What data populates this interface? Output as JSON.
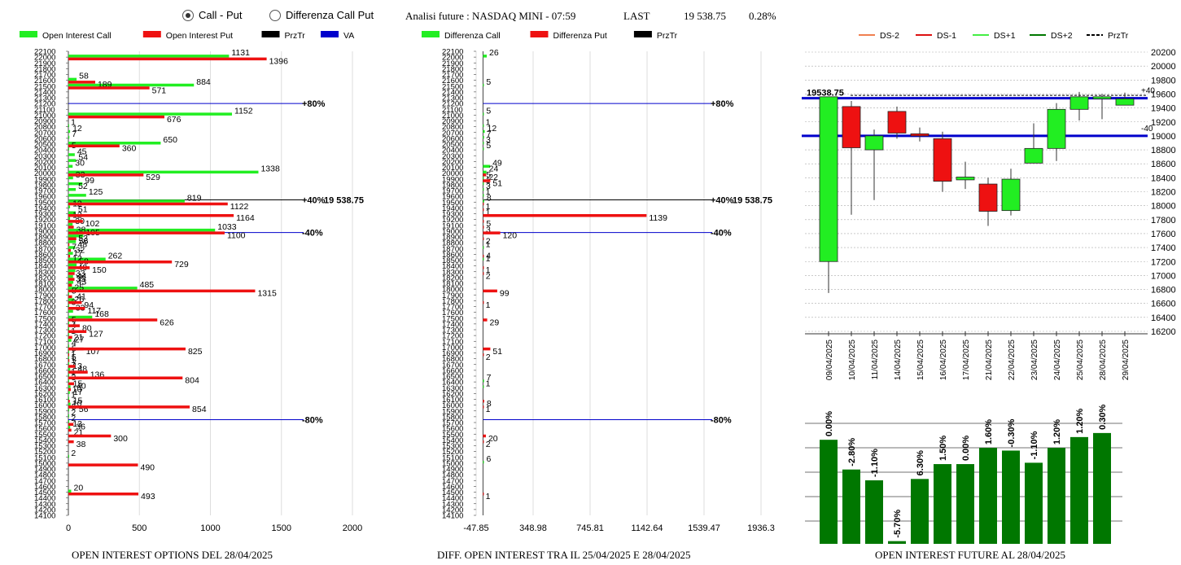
{
  "header": {
    "radio_call_put": "Call - Put",
    "radio_diff": "Differenza Call Put",
    "selected": "call_put",
    "analysis_label": "Analisi future : NASDAQ MINI - 07:59",
    "last_label": "LAST",
    "last_value": "19 538.75",
    "last_change": "0.28%"
  },
  "colors": {
    "call": "#22ee22",
    "put": "#ee1111",
    "prztr": "#000000",
    "va": "#0000cc",
    "dark_green": "#007700"
  },
  "chart_data": [
    {
      "id": "oi-options",
      "type": "bar",
      "orientation": "horizontal",
      "title": "OPEN INTEREST OPTIONS DEL 28/04/2025",
      "legend": [
        "Open Interest Call",
        "Open Interest Put",
        "PrzTr",
        "VA"
      ],
      "ylim": [
        14100,
        22100
      ],
      "yticks": [
        22100,
        22000,
        21900,
        21800,
        21700,
        21600,
        21500,
        21400,
        21300,
        21200,
        21100,
        21000,
        20900,
        20800,
        20700,
        20600,
        20500,
        20400,
        20300,
        20200,
        20100,
        20000,
        19900,
        19800,
        19700,
        19600,
        19500,
        19400,
        19300,
        19200,
        19100,
        19000,
        18900,
        18800,
        18700,
        18600,
        18500,
        18400,
        18300,
        18200,
        18100,
        18000,
        17900,
        17800,
        17700,
        17600,
        17500,
        17400,
        17300,
        17200,
        17100,
        17000,
        16900,
        16800,
        16700,
        16600,
        16500,
        16400,
        16300,
        16200,
        16100,
        16000,
        15900,
        15800,
        15700,
        15600,
        15500,
        15400,
        15300,
        15200,
        15100,
        15000,
        14900,
        14800,
        14700,
        14600,
        14500,
        14400,
        14300,
        14200,
        14100
      ],
      "xlim": [
        0,
        2000
      ],
      "xticks": [
        0,
        500,
        1000,
        1500,
        2000
      ],
      "calls": [
        [
          22000,
          1131
        ],
        [
          21600,
          58
        ],
        [
          21500,
          884
        ],
        [
          21000,
          1152
        ],
        [
          20800,
          1
        ],
        [
          20700,
          12
        ],
        [
          20600,
          7
        ],
        [
          20500,
          650
        ],
        [
          20400,
          5
        ],
        [
          20300,
          45
        ],
        [
          20200,
          54
        ],
        [
          20100,
          30
        ],
        [
          20000,
          1338
        ],
        [
          19900,
          33
        ],
        [
          19800,
          99
        ],
        [
          19700,
          52
        ],
        [
          19600,
          125
        ],
        [
          19500,
          819
        ],
        [
          19400,
          12
        ],
        [
          19300,
          51
        ],
        [
          19200,
          12
        ],
        [
          19100,
          30
        ],
        [
          19000,
          1033
        ],
        [
          18900,
          105
        ],
        [
          18800,
          53
        ],
        [
          18700,
          48
        ],
        [
          18600,
          32
        ],
        [
          18500,
          262
        ],
        [
          18400,
          58
        ],
        [
          18300,
          49
        ],
        [
          18200,
          33
        ],
        [
          18100,
          35
        ],
        [
          18000,
          485
        ],
        [
          17900,
          5
        ],
        [
          17800,
          41
        ],
        [
          17700,
          3
        ],
        [
          17600,
          33
        ],
        [
          17500,
          168
        ],
        [
          17400,
          5
        ],
        [
          17300,
          4
        ],
        [
          17200,
          1
        ],
        [
          17100,
          21
        ],
        [
          17000,
          4
        ],
        [
          16900,
          5
        ],
        [
          16800,
          1
        ],
        [
          16700,
          1
        ],
        [
          16600,
          13
        ],
        [
          16500,
          1
        ],
        [
          16400,
          3
        ],
        [
          16300,
          15
        ],
        [
          16200,
          10
        ],
        [
          16100,
          1
        ],
        [
          16000,
          15
        ],
        [
          15900,
          5
        ],
        [
          15800,
          2
        ],
        [
          15700,
          2
        ],
        [
          15600,
          13
        ],
        [
          15100,
          2
        ],
        [
          14500,
          20
        ]
      ],
      "puts": [
        [
          22000,
          1396
        ],
        [
          21600,
          189
        ],
        [
          21500,
          571
        ],
        [
          21000,
          676
        ],
        [
          20500,
          360
        ],
        [
          20000,
          529
        ],
        [
          19500,
          1122
        ],
        [
          19300,
          1164
        ],
        [
          19200,
          102
        ],
        [
          19100,
          38
        ],
        [
          19000,
          1100
        ],
        [
          18900,
          56
        ],
        [
          18800,
          7
        ],
        [
          18700,
          17
        ],
        [
          18600,
          12
        ],
        [
          18500,
          729
        ],
        [
          18400,
          150
        ],
        [
          18300,
          44
        ],
        [
          18200,
          43
        ],
        [
          18100,
          25
        ],
        [
          18000,
          1315
        ],
        [
          17900,
          26
        ],
        [
          17800,
          94
        ],
        [
          17700,
          117
        ],
        [
          17500,
          626
        ],
        [
          17400,
          80
        ],
        [
          17300,
          127
        ],
        [
          17200,
          27
        ],
        [
          17000,
          107
        ],
        [
          17000,
          825
        ],
        [
          16900,
          5
        ],
        [
          16800,
          7
        ],
        [
          16700,
          48
        ],
        [
          16600,
          136
        ],
        [
          16500,
          804
        ],
        [
          16400,
          40
        ],
        [
          16300,
          17
        ],
        [
          16100,
          10
        ],
        [
          16000,
          56
        ],
        [
          16000,
          854
        ],
        [
          15700,
          36
        ],
        [
          15600,
          21
        ],
        [
          15500,
          300
        ],
        [
          15400,
          38
        ],
        [
          15000,
          490
        ],
        [
          14500,
          493
        ]
      ],
      "lines": [
        {
          "price": 21200,
          "label": "+80%",
          "color": "#0000cc"
        },
        {
          "price": 19538.75,
          "label": "+40%",
          "color": "#000000",
          "value_label": "19 538.75"
        },
        {
          "price": 18975,
          "label": "-40%",
          "color": "#0000cc"
        },
        {
          "price": 15750,
          "label": "-80%",
          "color": "#0000cc"
        }
      ]
    },
    {
      "id": "diff-oi",
      "type": "bar",
      "orientation": "horizontal",
      "title": "DIFF. OPEN INTEREST TRA IL 25/04/2025 E 28/04/2025",
      "legend": [
        "Differenza Call",
        "Differenza Put",
        "PrzTr"
      ],
      "ylim": [
        14100,
        22100
      ],
      "yticks": [
        22100,
        22000,
        21900,
        21800,
        21700,
        21600,
        21500,
        21400,
        21300,
        21200,
        21100,
        21000,
        20900,
        20800,
        20700,
        20600,
        20500,
        20400,
        20300,
        20200,
        20100,
        20000,
        19900,
        19800,
        19700,
        19600,
        19500,
        19400,
        19300,
        19200,
        19100,
        19000,
        18900,
        18800,
        18700,
        18600,
        18500,
        18400,
        18300,
        18200,
        18100,
        18000,
        17900,
        17800,
        17700,
        17600,
        17500,
        17400,
        17300,
        17200,
        17100,
        17000,
        16900,
        16800,
        16700,
        16600,
        16500,
        16400,
        16300,
        16200,
        16100,
        16000,
        15900,
        15800,
        15700,
        15600,
        15500,
        15400,
        15300,
        15200,
        15100,
        15000,
        14900,
        14800,
        14700,
        14600,
        14500,
        14400,
        14300,
        14200,
        14100
      ],
      "xlim": [
        -47.85,
        1936.3
      ],
      "xticks": [
        "-47.85",
        "348.98",
        "745.81",
        "1142.64",
        "1539.47",
        "1936.3"
      ],
      "calls": [
        [
          22000,
          26
        ],
        [
          21500,
          5
        ],
        [
          21000,
          5
        ],
        [
          20800,
          1
        ],
        [
          20700,
          12
        ],
        [
          20600,
          7
        ],
        [
          20500,
          3
        ],
        [
          20400,
          5
        ],
        [
          20100,
          49
        ],
        [
          20000,
          24
        ],
        [
          19900,
          5
        ],
        [
          19800,
          1
        ],
        [
          19700,
          3
        ],
        [
          19600,
          1
        ],
        [
          19500,
          8
        ],
        [
          18700,
          1
        ],
        [
          18500,
          4
        ],
        [
          16400,
          7
        ],
        [
          16300,
          1
        ],
        [
          15000,
          6
        ]
      ],
      "puts": [
        [
          20000,
          22
        ],
        [
          19900,
          51
        ],
        [
          19500,
          1
        ],
        [
          19400,
          1
        ],
        [
          19300,
          1139
        ],
        [
          19200,
          5
        ],
        [
          19100,
          3
        ],
        [
          19000,
          120
        ],
        [
          18900,
          2
        ],
        [
          18600,
          1
        ],
        [
          18400,
          1
        ],
        [
          18300,
          2
        ],
        [
          18000,
          99
        ],
        [
          17800,
          1
        ],
        [
          17500,
          29
        ],
        [
          17000,
          51
        ],
        [
          16900,
          2
        ],
        [
          16100,
          8
        ],
        [
          16000,
          1
        ],
        [
          15500,
          20
        ],
        [
          15400,
          2
        ],
        [
          14500,
          1
        ]
      ],
      "lines": [
        {
          "price": 21200,
          "label": "+80%",
          "color": "#0000cc"
        },
        {
          "price": 19538.75,
          "label": "+40%",
          "color": "#000000",
          "value_label": "19 538.75"
        },
        {
          "price": 18975,
          "label": "-40%",
          "color": "#0000cc"
        },
        {
          "price": 15750,
          "label": "-80%",
          "color": "#0000cc"
        }
      ]
    },
    {
      "id": "candles",
      "type": "candlestick",
      "legend": [
        "DS-2",
        "DS-1",
        "DS+1",
        "DS+2",
        "PrzTr"
      ],
      "dates": [
        "09/04/2025",
        "10/04/2025",
        "11/04/2025",
        "14/04/2025",
        "15/04/2025",
        "16/04/2025",
        "17/04/2025",
        "21/04/2025",
        "22/04/2025",
        "23/04/2025",
        "24/04/2025",
        "25/04/2025",
        "28/04/2025",
        "29/04/2025"
      ],
      "ohlc": [
        [
          17200,
          19560,
          16750,
          19560
        ],
        [
          19420,
          19500,
          17870,
          18830
        ],
        [
          18800,
          19090,
          18080,
          19000
        ],
        [
          19350,
          19420,
          18960,
          19040
        ],
        [
          19030,
          19120,
          18920,
          19000
        ],
        [
          18960,
          19060,
          18200,
          18350
        ],
        [
          18370,
          18630,
          18240,
          18410
        ],
        [
          18310,
          18400,
          17710,
          17920
        ],
        [
          17930,
          18530,
          17860,
          18380
        ],
        [
          18610,
          19180,
          18620,
          18820
        ],
        [
          18820,
          19470,
          18640,
          19380
        ],
        [
          19380,
          19630,
          19220,
          19560
        ],
        [
          19530,
          19600,
          19240,
          19560
        ],
        [
          19440,
          19620,
          19440,
          19530
        ]
      ],
      "ylim": [
        16200,
        20200
      ],
      "yticks": [
        20200,
        20000,
        19800,
        19600,
        19400,
        19200,
        19000,
        18800,
        18600,
        18400,
        18200,
        18000,
        17800,
        17600,
        17400,
        17200,
        17000,
        16800,
        16600,
        16400,
        16200
      ],
      "price_label": "19538.75",
      "lines": [
        {
          "price": 19540,
          "label": "+40",
          "color": "#0000cc",
          "width": 3
        },
        {
          "price": 19000,
          "label": "-40",
          "color": "#0000cc",
          "width": 3
        },
        {
          "price": 19580,
          "label": "",
          "color": "#000000",
          "dashed": true
        }
      ]
    },
    {
      "id": "oi-future",
      "type": "bar",
      "title": "OPEN INTEREST FUTURE AL 28/04/2025",
      "categories": [
        "09/04/2025",
        "10/04/2025",
        "11/04/2025",
        "14/04/2025",
        "15/04/2025",
        "16/04/2025",
        "17/04/2025",
        "21/04/2025",
        "22/04/2025",
        "23/04/2025",
        "24/04/2025",
        "25/04/2025",
        "28/04/2025",
        "29/04/2025"
      ],
      "labels": [
        "0.00%",
        "-2.80%",
        "-1.10%",
        "-5.70%",
        "6.30%",
        "1.50%",
        "0.00%",
        "1.60%",
        "-0.30%",
        "-1.10%",
        "1.20%",
        "1.20%",
        "0.30%"
      ],
      "values": [
        0.77,
        0.55,
        0.47,
        0.02,
        0.48,
        0.59,
        0.59,
        0.71,
        0.69,
        0.6,
        0.71,
        0.79,
        0.82
      ]
    }
  ],
  "ds_labels": [
    "DS-2",
    "DS-1",
    "DS+1",
    "DS+2",
    "PrzTr"
  ],
  "ds_colors": [
    "#f08050",
    "#dd1111",
    "#44ee44",
    "#007700",
    "#000000"
  ]
}
